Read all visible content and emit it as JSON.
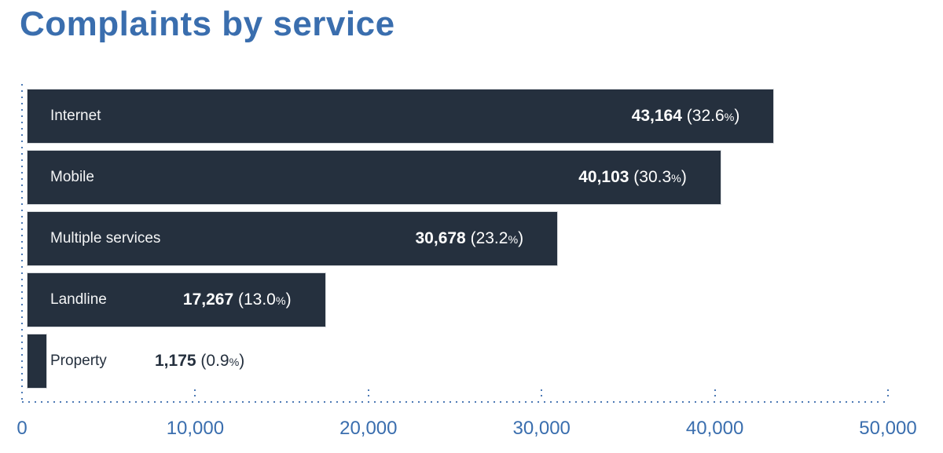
{
  "title": {
    "text": "Complaints by service",
    "color": "#3a6eae"
  },
  "chart_data": {
    "type": "bar",
    "orientation": "horizontal",
    "title": "Complaints by service",
    "categories": [
      "Internet",
      "Mobile",
      "Multiple services",
      "Landline",
      "Property"
    ],
    "values": [
      43164,
      40103,
      30678,
      17267,
      1175
    ],
    "value_labels": [
      "43,164",
      "40,103",
      "30,678",
      "17,267",
      "1,175"
    ],
    "percent_labels": [
      "32.6",
      "30.3",
      "23.2",
      "13.0",
      "0.9"
    ],
    "xlabel": "",
    "ylabel": "",
    "xlim": [
      0,
      50000
    ],
    "x_ticks": [
      0,
      10000,
      20000,
      30000,
      40000,
      50000
    ],
    "x_tick_labels": [
      "0",
      "10,000",
      "20,000",
      "30,000",
      "40,000",
      "50,000"
    ],
    "legend": "none",
    "grid": "dotted-axes-only",
    "bar_color": "#25303e",
    "axis_color": "#3a6eae",
    "bar_text_color": "#ffffff"
  }
}
